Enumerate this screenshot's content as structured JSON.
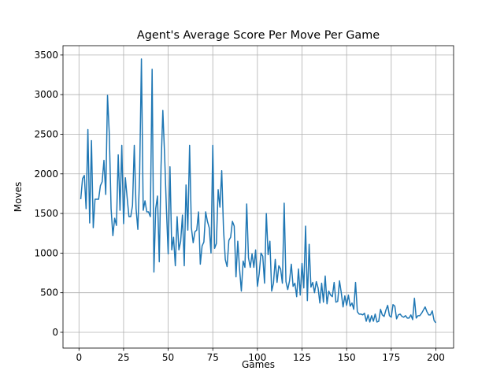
{
  "chart_data": {
    "type": "line",
    "title": "Agent's Average Score Per Move Per Game",
    "xlabel": "Games",
    "ylabel": "Moves",
    "color": "#1f77b4",
    "grid": true,
    "x": [
      1,
      2,
      3,
      4,
      5,
      6,
      7,
      8,
      9,
      10,
      11,
      12,
      13,
      14,
      15,
      16,
      17,
      18,
      19,
      20,
      21,
      22,
      23,
      24,
      25,
      26,
      27,
      28,
      29,
      30,
      31,
      32,
      33,
      34,
      35,
      36,
      37,
      38,
      39,
      40,
      41,
      42,
      43,
      44,
      45,
      46,
      47,
      48,
      49,
      50,
      51,
      52,
      53,
      54,
      55,
      56,
      57,
      58,
      59,
      60,
      61,
      62,
      63,
      64,
      65,
      66,
      67,
      68,
      69,
      70,
      71,
      72,
      73,
      74,
      75,
      76,
      77,
      78,
      79,
      80,
      81,
      82,
      83,
      84,
      85,
      86,
      87,
      88,
      89,
      90,
      91,
      92,
      93,
      94,
      95,
      96,
      97,
      98,
      99,
      100,
      101,
      102,
      103,
      104,
      105,
      106,
      107,
      108,
      109,
      110,
      111,
      112,
      113,
      114,
      115,
      116,
      117,
      118,
      119,
      120,
      121,
      122,
      123,
      124,
      125,
      126,
      127,
      128,
      129,
      130,
      131,
      132,
      133,
      134,
      135,
      136,
      137,
      138,
      139,
      140,
      141,
      142,
      143,
      144,
      145,
      146,
      147,
      148,
      149,
      150,
      151,
      152,
      153,
      154,
      155,
      156,
      157,
      158,
      159,
      160,
      161,
      162,
      163,
      164,
      165,
      166,
      167,
      168,
      169,
      170,
      171,
      172,
      173,
      174,
      175,
      176,
      177,
      178,
      179,
      180,
      181,
      182,
      183,
      184,
      185,
      186,
      187,
      188,
      189,
      190,
      191,
      192,
      193,
      194,
      195,
      196,
      197,
      198,
      199,
      200
    ],
    "values": [
      1680,
      1940,
      1980,
      1560,
      2560,
      1380,
      2420,
      1320,
      1680,
      1680,
      1680,
      1850,
      1900,
      2170,
      1740,
      2990,
      2500,
      1560,
      1220,
      1440,
      1350,
      2240,
      1540,
      2360,
      1370,
      1950,
      1700,
      1460,
      1460,
      1600,
      2360,
      1560,
      1300,
      2000,
      3450,
      1540,
      1660,
      1520,
      1520,
      1460,
      3320,
      760,
      1560,
      1720,
      890,
      2100,
      2800,
      2230,
      1560,
      990,
      2090,
      1040,
      1200,
      840,
      1460,
      1040,
      1150,
      1480,
      840,
      1860,
      1290,
      2360,
      1320,
      1130,
      1270,
      1290,
      1520,
      860,
      1090,
      1140,
      1520,
      1400,
      1320,
      1000,
      2360,
      1060,
      1120,
      1800,
      1580,
      2040,
      1300,
      920,
      830,
      1160,
      1200,
      1400,
      1340,
      700,
      1150,
      800,
      520,
      900,
      820,
      1620,
      940,
      820,
      990,
      820,
      1040,
      580,
      740,
      1000,
      960,
      620,
      1500,
      980,
      1150,
      520,
      620,
      920,
      630,
      840,
      800,
      620,
      1630,
      640,
      540,
      650,
      860,
      580,
      620,
      450,
      800,
      470,
      870,
      560,
      1340,
      400,
      1110,
      570,
      630,
      500,
      640,
      560,
      370,
      620,
      380,
      710,
      360,
      520,
      470,
      450,
      630,
      380,
      390,
      650,
      500,
      320,
      460,
      340,
      470,
      330,
      370,
      290,
      630,
      260,
      230,
      230,
      220,
      240,
      140,
      220,
      130,
      210,
      140,
      230,
      130,
      140,
      290,
      220,
      200,
      280,
      340,
      210,
      190,
      350,
      330,
      170,
      220,
      230,
      200,
      190,
      210,
      180,
      180,
      220,
      160,
      430,
      180,
      210,
      210,
      240,
      280,
      320,
      260,
      220,
      220,
      270,
      150,
      120
    ],
    "xlim": [
      -8.95,
      209.95
    ],
    "ylim": [
      -199,
      3618
    ],
    "xticks": [
      0,
      25,
      50,
      75,
      100,
      125,
      150,
      175,
      200
    ],
    "yticks": [
      0,
      500,
      1000,
      1500,
      2000,
      2500,
      3000,
      3500
    ]
  }
}
